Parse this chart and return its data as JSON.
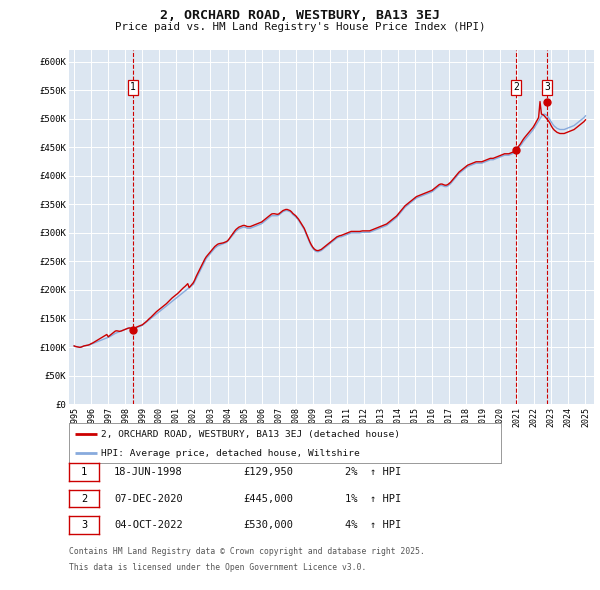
{
  "title": "2, ORCHARD ROAD, WESTBURY, BA13 3EJ",
  "subtitle": "Price paid vs. HM Land Registry's House Price Index (HPI)",
  "background_color": "#dce6f1",
  "plot_bg_color": "#dce6f1",
  "fig_bg_color": "#ffffff",
  "ylim": [
    0,
    620000
  ],
  "yticks": [
    0,
    50000,
    100000,
    150000,
    200000,
    250000,
    300000,
    350000,
    400000,
    450000,
    500000,
    550000,
    600000
  ],
  "ytick_labels": [
    "£0",
    "£50K",
    "£100K",
    "£150K",
    "£200K",
    "£250K",
    "£300K",
    "£350K",
    "£400K",
    "£450K",
    "£500K",
    "£550K",
    "£600K"
  ],
  "xlim_start": 1994.7,
  "xlim_end": 2025.5,
  "xtick_years": [
    1995,
    1996,
    1997,
    1998,
    1999,
    2000,
    2001,
    2002,
    2003,
    2004,
    2005,
    2006,
    2007,
    2008,
    2009,
    2010,
    2011,
    2012,
    2013,
    2014,
    2015,
    2016,
    2017,
    2018,
    2019,
    2020,
    2021,
    2022,
    2023,
    2024,
    2025
  ],
  "red_line_color": "#cc0000",
  "blue_line_color": "#88aadd",
  "marker_color": "#cc0000",
  "dashed_line_color": "#cc0000",
  "legend_label_red": "2, ORCHARD ROAD, WESTBURY, BA13 3EJ (detached house)",
  "legend_label_blue": "HPI: Average price, detached house, Wiltshire",
  "sale_points": [
    {
      "num": 1,
      "year": 1998.46,
      "price": 129950,
      "date": "18-JUN-1998",
      "pct": "2%",
      "dir": "↑"
    },
    {
      "num": 2,
      "year": 2020.92,
      "price": 445000,
      "date": "07-DEC-2020",
      "pct": "1%",
      "dir": "↑"
    },
    {
      "num": 3,
      "year": 2022.75,
      "price": 530000,
      "date": "04-OCT-2022",
      "pct": "4%",
      "dir": "↑"
    }
  ],
  "footnote_line1": "Contains HM Land Registry data © Crown copyright and database right 2025.",
  "footnote_line2": "This data is licensed under the Open Government Licence v3.0.",
  "hpi_years": [
    1995.0,
    1995.083,
    1995.167,
    1995.25,
    1995.333,
    1995.417,
    1995.5,
    1995.583,
    1995.667,
    1995.75,
    1995.833,
    1995.917,
    1996.0,
    1996.083,
    1996.167,
    1996.25,
    1996.333,
    1996.417,
    1996.5,
    1996.583,
    1996.667,
    1996.75,
    1996.833,
    1996.917,
    1997.0,
    1997.083,
    1997.167,
    1997.25,
    1997.333,
    1997.417,
    1997.5,
    1997.583,
    1997.667,
    1997.75,
    1997.833,
    1997.917,
    1998.0,
    1998.083,
    1998.167,
    1998.25,
    1998.333,
    1998.417,
    1998.5,
    1998.583,
    1998.667,
    1998.75,
    1998.833,
    1998.917,
    1999.0,
    1999.083,
    1999.167,
    1999.25,
    1999.333,
    1999.417,
    1999.5,
    1999.583,
    1999.667,
    1999.75,
    1999.833,
    1999.917,
    2000.0,
    2000.083,
    2000.167,
    2000.25,
    2000.333,
    2000.417,
    2000.5,
    2000.583,
    2000.667,
    2000.75,
    2000.833,
    2000.917,
    2001.0,
    2001.083,
    2001.167,
    2001.25,
    2001.333,
    2001.417,
    2001.5,
    2001.583,
    2001.667,
    2001.75,
    2001.833,
    2001.917,
    2002.0,
    2002.083,
    2002.167,
    2002.25,
    2002.333,
    2002.417,
    2002.5,
    2002.583,
    2002.667,
    2002.75,
    2002.833,
    2002.917,
    2003.0,
    2003.083,
    2003.167,
    2003.25,
    2003.333,
    2003.417,
    2003.5,
    2003.583,
    2003.667,
    2003.75,
    2003.833,
    2003.917,
    2004.0,
    2004.083,
    2004.167,
    2004.25,
    2004.333,
    2004.417,
    2004.5,
    2004.583,
    2004.667,
    2004.75,
    2004.833,
    2004.917,
    2005.0,
    2005.083,
    2005.167,
    2005.25,
    2005.333,
    2005.417,
    2005.5,
    2005.583,
    2005.667,
    2005.75,
    2005.833,
    2005.917,
    2006.0,
    2006.083,
    2006.167,
    2006.25,
    2006.333,
    2006.417,
    2006.5,
    2006.583,
    2006.667,
    2006.75,
    2006.833,
    2006.917,
    2007.0,
    2007.083,
    2007.167,
    2007.25,
    2007.333,
    2007.417,
    2007.5,
    2007.583,
    2007.667,
    2007.75,
    2007.833,
    2007.917,
    2008.0,
    2008.083,
    2008.167,
    2008.25,
    2008.333,
    2008.417,
    2008.5,
    2008.583,
    2008.667,
    2008.75,
    2008.833,
    2008.917,
    2009.0,
    2009.083,
    2009.167,
    2009.25,
    2009.333,
    2009.417,
    2009.5,
    2009.583,
    2009.667,
    2009.75,
    2009.833,
    2009.917,
    2010.0,
    2010.083,
    2010.167,
    2010.25,
    2010.333,
    2010.417,
    2010.5,
    2010.583,
    2010.667,
    2010.75,
    2010.833,
    2010.917,
    2011.0,
    2011.083,
    2011.167,
    2011.25,
    2011.333,
    2011.417,
    2011.5,
    2011.583,
    2011.667,
    2011.75,
    2011.833,
    2011.917,
    2012.0,
    2012.083,
    2012.167,
    2012.25,
    2012.333,
    2012.417,
    2012.5,
    2012.583,
    2012.667,
    2012.75,
    2012.833,
    2012.917,
    2013.0,
    2013.083,
    2013.167,
    2013.25,
    2013.333,
    2013.417,
    2013.5,
    2013.583,
    2013.667,
    2013.75,
    2013.833,
    2013.917,
    2014.0,
    2014.083,
    2014.167,
    2014.25,
    2014.333,
    2014.417,
    2014.5,
    2014.583,
    2014.667,
    2014.75,
    2014.833,
    2014.917,
    2015.0,
    2015.083,
    2015.167,
    2015.25,
    2015.333,
    2015.417,
    2015.5,
    2015.583,
    2015.667,
    2015.75,
    2015.833,
    2015.917,
    2016.0,
    2016.083,
    2016.167,
    2016.25,
    2016.333,
    2016.417,
    2016.5,
    2016.583,
    2016.667,
    2016.75,
    2016.833,
    2016.917,
    2017.0,
    2017.083,
    2017.167,
    2017.25,
    2017.333,
    2017.417,
    2017.5,
    2017.583,
    2017.667,
    2017.75,
    2017.833,
    2017.917,
    2018.0,
    2018.083,
    2018.167,
    2018.25,
    2018.333,
    2018.417,
    2018.5,
    2018.583,
    2018.667,
    2018.75,
    2018.833,
    2018.917,
    2019.0,
    2019.083,
    2019.167,
    2019.25,
    2019.333,
    2019.417,
    2019.5,
    2019.583,
    2019.667,
    2019.75,
    2019.833,
    2019.917,
    2020.0,
    2020.083,
    2020.167,
    2020.25,
    2020.333,
    2020.417,
    2020.5,
    2020.583,
    2020.667,
    2020.75,
    2020.833,
    2020.917,
    2021.0,
    2021.083,
    2021.167,
    2021.25,
    2021.333,
    2021.417,
    2021.5,
    2021.583,
    2021.667,
    2021.75,
    2021.833,
    2021.917,
    2022.0,
    2022.083,
    2022.167,
    2022.25,
    2022.333,
    2022.417,
    2022.5,
    2022.583,
    2022.667,
    2022.75,
    2022.833,
    2022.917,
    2023.0,
    2023.083,
    2023.167,
    2023.25,
    2023.333,
    2023.417,
    2023.5,
    2023.583,
    2023.667,
    2023.75,
    2023.833,
    2023.917,
    2024.0,
    2024.083,
    2024.167,
    2024.25,
    2024.333,
    2024.417,
    2024.5,
    2024.583,
    2024.667,
    2024.75,
    2024.833,
    2024.917,
    2025.0
  ],
  "hpi_values": [
    102000,
    101000,
    100500,
    100000,
    99500,
    100000,
    101000,
    102000,
    102500,
    103000,
    103500,
    104000,
    105000,
    106000,
    107000,
    108000,
    109000,
    110000,
    111000,
    112000,
    113000,
    114000,
    115000,
    116000,
    117000,
    118000,
    119500,
    121000,
    122500,
    124000,
    125000,
    126000,
    127000,
    128000,
    129000,
    130000,
    131000,
    132000,
    133000,
    133500,
    133000,
    132500,
    132000,
    133000,
    134000,
    135000,
    136000,
    137000,
    138000,
    140000,
    142000,
    144000,
    146000,
    148000,
    150000,
    152000,
    154000,
    156000,
    158000,
    160000,
    162000,
    164000,
    166000,
    168000,
    170000,
    172000,
    174000,
    176000,
    178000,
    180000,
    182000,
    184000,
    186000,
    188000,
    190000,
    192000,
    194000,
    196000,
    198000,
    200000,
    202000,
    204000,
    206000,
    208000,
    210000,
    215000,
    220000,
    225000,
    230000,
    235000,
    240000,
    245000,
    250000,
    255000,
    258000,
    261000,
    264000,
    267000,
    270000,
    273000,
    275000,
    277000,
    278000,
    279000,
    280000,
    281000,
    282000,
    283000,
    285000,
    288000,
    291000,
    294000,
    297000,
    300000,
    303000,
    305000,
    307000,
    308000,
    309000,
    310000,
    310000,
    309000,
    308000,
    308000,
    308000,
    309000,
    310000,
    311000,
    312000,
    313000,
    314000,
    315000,
    316000,
    318000,
    320000,
    322000,
    324000,
    326000,
    328000,
    330000,
    330000,
    330000,
    330000,
    330000,
    331000,
    333000,
    335000,
    337000,
    338000,
    339000,
    339000,
    338000,
    337000,
    335000,
    332000,
    330000,
    328000,
    325000,
    322000,
    318000,
    314000,
    310000,
    306000,
    300000,
    294000,
    288000,
    282000,
    277000,
    273000,
    270000,
    268000,
    267000,
    267000,
    268000,
    269000,
    271000,
    273000,
    275000,
    277000,
    279000,
    281000,
    283000,
    285000,
    287000,
    289000,
    291000,
    292000,
    293000,
    293000,
    294000,
    295000,
    296000,
    297000,
    298000,
    299000,
    300000,
    300000,
    300000,
    300000,
    300000,
    300000,
    300000,
    300500,
    301000,
    301000,
    301000,
    301000,
    301000,
    301000,
    302000,
    303000,
    304000,
    305000,
    306000,
    307000,
    308000,
    309000,
    310000,
    311000,
    312000,
    313000,
    315000,
    317000,
    319000,
    321000,
    323000,
    325000,
    327000,
    330000,
    333000,
    336000,
    339000,
    342000,
    345000,
    347000,
    349000,
    351000,
    353000,
    355000,
    357000,
    359000,
    361000,
    362000,
    363000,
    364000,
    365000,
    366000,
    367000,
    368000,
    369000,
    370000,
    371000,
    372000,
    374000,
    376000,
    378000,
    380000,
    382000,
    383000,
    383000,
    382000,
    381000,
    381000,
    382000,
    384000,
    386000,
    389000,
    392000,
    395000,
    398000,
    401000,
    404000,
    406000,
    408000,
    410000,
    412000,
    414000,
    416000,
    417000,
    418000,
    419000,
    420000,
    421000,
    422000,
    422000,
    422000,
    422000,
    422000,
    423000,
    424000,
    425000,
    426000,
    427000,
    428000,
    428000,
    428000,
    429000,
    430000,
    431000,
    432000,
    433000,
    434000,
    435000,
    436000,
    436000,
    436000,
    436000,
    437000,
    438000,
    439000,
    440000,
    443000,
    446000,
    449000,
    452000,
    455000,
    459000,
    462000,
    465000,
    468000,
    471000,
    474000,
    477000,
    480000,
    484000,
    488000,
    492000,
    496000,
    500000,
    504000,
    507000,
    508000,
    507000,
    505000,
    502000,
    498000,
    494000,
    490000,
    487000,
    485000,
    483000,
    482000,
    481000,
    481000,
    481000,
    481000,
    482000,
    483000,
    484000,
    485000,
    486000,
    487000,
    488000,
    490000,
    492000,
    494000,
    496000,
    498000,
    500000,
    502000,
    505000
  ],
  "red_values": [
    102000,
    101000,
    100500,
    100000,
    99500,
    100000,
    101000,
    102000,
    102500,
    103000,
    103500,
    104500,
    106000,
    107000,
    108500,
    110000,
    111500,
    113000,
    114500,
    116000,
    117500,
    119000,
    120500,
    122000,
    118000,
    120000,
    122000,
    124000,
    126000,
    128000,
    128500,
    128000,
    127500,
    128000,
    129000,
    130000,
    131000,
    132000,
    133000,
    133500,
    133000,
    132500,
    132000,
    133500,
    135000,
    136000,
    137000,
    138000,
    139000,
    141000,
    143000,
    145000,
    147500,
    150000,
    152000,
    154500,
    157000,
    159500,
    162000,
    164000,
    166000,
    168000,
    170000,
    172000,
    174000,
    176000,
    178500,
    181000,
    183500,
    186000,
    188000,
    190000,
    192000,
    194000,
    196500,
    199000,
    201500,
    204000,
    206000,
    208500,
    211000,
    204000,
    207000,
    210000,
    213000,
    218000,
    224000,
    229000,
    234000,
    239000,
    244000,
    249000,
    254000,
    258000,
    261000,
    264000,
    267000,
    270000,
    273000,
    276000,
    278000,
    280000,
    281000,
    281500,
    282000,
    282500,
    283500,
    284500,
    286000,
    289000,
    292500,
    296000,
    299500,
    303000,
    306000,
    308000,
    310000,
    311000,
    312000,
    313000,
    313000,
    312000,
    311000,
    311000,
    311000,
    312000,
    313000,
    314000,
    315000,
    316000,
    317000,
    318000,
    319000,
    321000,
    323000,
    325000,
    327000,
    329000,
    331000,
    333000,
    333500,
    333500,
    333000,
    332500,
    333000,
    335000,
    337000,
    339000,
    340000,
    341000,
    341000,
    340000,
    339000,
    337000,
    334000,
    332000,
    330000,
    327000,
    324000,
    320000,
    316000,
    312000,
    308000,
    302000,
    296000,
    290000,
    284000,
    279000,
    275000,
    272000,
    270000,
    269000,
    269000,
    270000,
    271000,
    273000,
    275000,
    277000,
    279000,
    281000,
    283000,
    285000,
    287000,
    289000,
    291000,
    293000,
    294000,
    295000,
    295500,
    296500,
    297500,
    298500,
    299500,
    300500,
    301500,
    302500,
    302500,
    302500,
    302500,
    302500,
    302500,
    302500,
    303000,
    303500,
    303500,
    303500,
    303500,
    303500,
    303500,
    304500,
    305500,
    306500,
    307500,
    308500,
    309500,
    310500,
    311500,
    312500,
    313500,
    314500,
    315500,
    317500,
    319500,
    321500,
    323500,
    325500,
    327500,
    329500,
    332500,
    335500,
    338500,
    341500,
    344500,
    347500,
    349500,
    351500,
    353500,
    355500,
    357500,
    359500,
    361500,
    363500,
    364500,
    365500,
    366500,
    367500,
    368500,
    369500,
    370500,
    371500,
    372500,
    373500,
    374500,
    376500,
    378500,
    380500,
    382500,
    384500,
    385500,
    385500,
    384500,
    383500,
    383500,
    384500,
    386500,
    388500,
    391500,
    394500,
    397500,
    400500,
    403500,
    406500,
    408500,
    410500,
    412500,
    414500,
    416500,
    418500,
    419500,
    420500,
    421500,
    422500,
    423500,
    424500,
    424500,
    424500,
    424500,
    424500,
    425500,
    426500,
    427500,
    428500,
    429500,
    430500,
    430500,
    430500,
    431500,
    432500,
    433500,
    434500,
    435500,
    436500,
    437500,
    438500,
    438500,
    438500,
    438500,
    439500,
    440500,
    441500,
    443000,
    446000,
    449000,
    452000,
    455000,
    459000,
    463000,
    466500,
    469500,
    472500,
    475500,
    478500,
    481500,
    484500,
    488500,
    493000,
    497500,
    502000,
    530000,
    508000,
    507000,
    505000,
    502000,
    499000,
    496000,
    492000,
    487000,
    483000,
    480000,
    478000,
    476000,
    475000,
    474000,
    474000,
    474000,
    474000,
    475000,
    476000,
    477000,
    478000,
    479000,
    480000,
    481000,
    483000,
    485000,
    487000,
    489000,
    491000,
    493000,
    495000,
    498000
  ]
}
